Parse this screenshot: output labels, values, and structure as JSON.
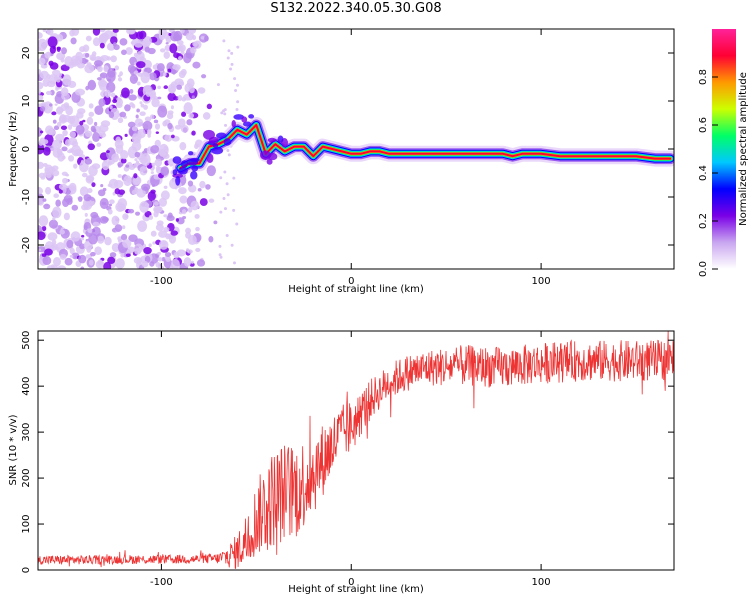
{
  "title": "S132.2022.340.05.30.G08",
  "chart_data": [
    {
      "type": "heatmap",
      "name": "spectrogram",
      "xlabel": "Height of straight line (km)",
      "ylabel": "Frequency (Hz)",
      "xlim": [
        -165,
        170
      ],
      "ylim": [
        -25,
        25
      ],
      "xticks": [
        -100,
        0,
        100
      ],
      "yticks": [
        -20,
        -10,
        0,
        10,
        20
      ],
      "noise_region_x": [
        -165,
        -70
      ],
      "signal_ridge": {
        "x": [
          -90,
          -85,
          -80,
          -75,
          -70,
          -65,
          -60,
          -55,
          -50,
          -45,
          -40,
          -35,
          -30,
          -25,
          -20,
          -15,
          -10,
          -5,
          0,
          5,
          10,
          15,
          20,
          40,
          60,
          75,
          80,
          85,
          90,
          100,
          110,
          120,
          130,
          140,
          150,
          160,
          168
        ],
        "y": [
          -4,
          -3,
          -3,
          0.5,
          1,
          2,
          4,
          3,
          5,
          -1,
          1,
          -0.5,
          0.5,
          0.5,
          -1.5,
          0.5,
          0,
          -0.5,
          -1,
          -1,
          -0.5,
          -0.5,
          -1,
          -1,
          -1,
          -1,
          -1,
          -1.5,
          -1,
          -1,
          -1.5,
          -1.5,
          -1.5,
          -1.5,
          -1.5,
          -2,
          -2
        ]
      },
      "colorbar": {
        "label": "Normalized spectral amplitude",
        "ticks": [
          "0.0",
          "0.2",
          "0.4",
          "0.6",
          "0.8"
        ],
        "colors": [
          "#ffffff",
          "#c9a6f0",
          "#7a00e6",
          "#0000ff",
          "#00c8ff",
          "#00ff66",
          "#ccff00",
          "#ff9900",
          "#ff0033",
          "#ff2299"
        ]
      }
    },
    {
      "type": "line",
      "name": "snr",
      "xlabel": "Height of straight line (km)",
      "ylabel": "SNR (10 * v/v)",
      "xlim": [
        -165,
        170
      ],
      "ylim": [
        0,
        520
      ],
      "xticks": [
        -100,
        0,
        100
      ],
      "yticks": [
        0,
        100,
        200,
        300,
        400,
        500
      ],
      "color": "#ee3333",
      "x": [
        -165,
        -140,
        -120,
        -100,
        -80,
        -70,
        -65,
        -60,
        -55,
        -50,
        -45,
        -40,
        -35,
        -30,
        -25,
        -20,
        -15,
        -10,
        -5,
        0,
        5,
        10,
        15,
        20,
        25,
        30,
        40,
        60,
        80,
        100,
        120,
        140,
        160,
        170
      ],
      "y": [
        22,
        22,
        23,
        23,
        24,
        25,
        30,
        40,
        70,
        110,
        140,
        160,
        170,
        170,
        190,
        210,
        240,
        270,
        300,
        310,
        340,
        370,
        390,
        410,
        420,
        430,
        440,
        445,
        440,
        450,
        455,
        455,
        455,
        460
      ],
      "amplitude": [
        10,
        10,
        10,
        10,
        10,
        12,
        25,
        40,
        60,
        80,
        100,
        110,
        110,
        110,
        100,
        90,
        80,
        70,
        60,
        60,
        50,
        45,
        40,
        40,
        40,
        40,
        40,
        45,
        45,
        45,
        45,
        45,
        45,
        45
      ]
    }
  ]
}
